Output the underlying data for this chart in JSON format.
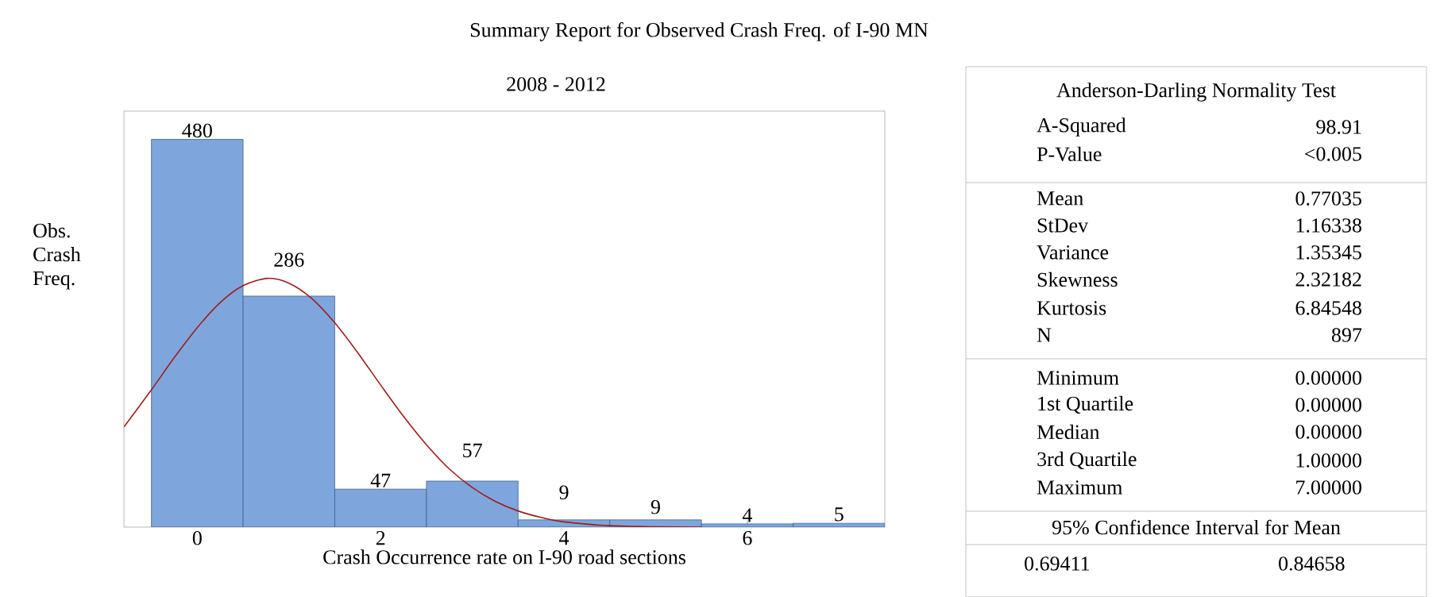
{
  "chart_data": {
    "type": "histogram",
    "title": "Summary Report for Observed Crash Freq. of I-90 MN",
    "subtitle": "2008 - 2012",
    "xlabel": "Crash Occurrence rate on I-90 road sections",
    "ylabel": "Obs. Crash Freq.",
    "bins": [
      -0.5,
      0.5,
      1.5,
      2.5,
      3.5,
      4.5,
      5.5,
      6.5,
      7.5
    ],
    "values": [
      480,
      286,
      47,
      57,
      9,
      9,
      4,
      5
    ],
    "color": "#7ea6dc",
    "value_labels": [
      "480",
      "286",
      "47",
      "57",
      "9",
      "9",
      "4",
      "5"
    ],
    "series": [
      {
        "type": "line",
        "color": "#a01c1c",
        "marker": "none",
        "x": [
          -0.8,
          -0.5,
          -0.25,
          0,
          0.25,
          0.5,
          0.77,
          1.0,
          1.25,
          1.5,
          1.75,
          2.0,
          2.25,
          2.5,
          2.75,
          3.0,
          3.25,
          3.5,
          3.75,
          4.0,
          4.5,
          5.0,
          5.5
        ],
        "values": [
          124,
          170,
          210,
          247,
          278,
          299,
          308,
          302,
          283,
          253,
          216,
          176,
          137,
          102,
          72,
          49,
          32,
          20,
          12,
          6.5,
          1.8,
          0.4,
          0
        ]
      }
    ],
    "xlim": [
      -0.8,
      7.5
    ],
    "ylim": [
      0,
      515
    ],
    "xticks": [
      0,
      2,
      4,
      6
    ],
    "tick_labels": "x",
    "annotations": [
      "Anderson-Darling Normality Test",
      "A-Squared",
      "98.91",
      "P-Value",
      "<0.005",
      "Mean",
      "0.77035",
      "StDev",
      "1.16338",
      "Variance",
      "1.35345",
      "Skewness",
      "2.32182",
      "Kurtosis",
      "6.84548",
      "N",
      "897",
      "Minimum",
      "0.00000",
      "1st Quartile",
      "0.00000",
      "Median",
      "0.00000",
      "3rd Quartile",
      "1.00000",
      "Maximum",
      "7.00000",
      "95% Confidence Interval for Mean",
      "0.69411",
      "0.84658"
    ]
  }
}
